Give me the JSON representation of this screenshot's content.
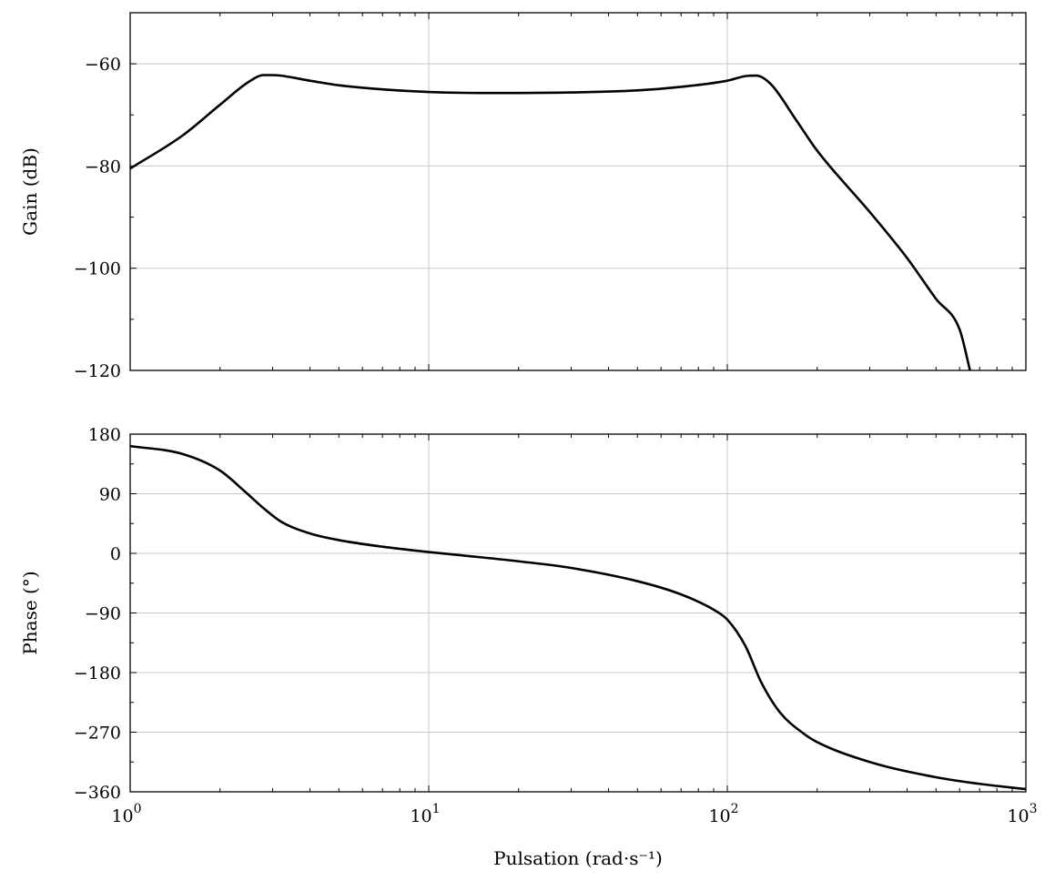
{
  "chart_data": [
    {
      "type": "line",
      "panel": "gain",
      "ylabel": "Gain (dB)",
      "xlabel": "",
      "xscale": "log",
      "xlim": [
        1,
        1000
      ],
      "ylim": [
        -120,
        -50
      ],
      "yticks": [
        -60,
        -80,
        -100,
        -120
      ],
      "ytick_labels": [
        "−60",
        "−80",
        "−100",
        "−120"
      ],
      "grid": true,
      "series": [
        {
          "x": [
            1,
            1.5,
            2,
            2.5,
            2.8,
            3,
            4,
            5,
            7,
            10,
            15,
            20,
            30,
            50,
            70,
            100,
            115,
            125,
            140,
            170,
            200,
            300,
            400,
            500,
            600,
            650
          ],
          "y": [
            -80.5,
            -74,
            -68,
            -63.5,
            -62.2,
            -62.2,
            -63.3,
            -64.2,
            -65,
            -65.5,
            -65.7,
            -65.7,
            -65.6,
            -65.2,
            -64.5,
            -63.3,
            -62.4,
            -62.3,
            -64,
            -71,
            -77,
            -89,
            -98,
            -106,
            -112,
            -120
          ]
        }
      ]
    },
    {
      "type": "line",
      "panel": "phase",
      "ylabel": "Phase (°)",
      "xlabel": "Pulsation (rad·s⁻¹)",
      "xscale": "log",
      "xlim": [
        1,
        1000
      ],
      "ylim": [
        -360,
        180
      ],
      "yticks": [
        180,
        90,
        0,
        -90,
        -180,
        -270,
        -360
      ],
      "ytick_labels": [
        "180",
        "90",
        "0",
        "−90",
        "−180",
        "−270",
        "−360"
      ],
      "xtick_labels": [
        "10",
        "10",
        "10",
        "10"
      ],
      "xtick_exponents": [
        "0",
        "1",
        "2",
        "3"
      ],
      "grid": true,
      "series": [
        {
          "x": [
            1,
            1.5,
            2,
            2.4,
            2.8,
            3.2,
            4,
            5,
            7,
            10,
            15,
            20,
            30,
            50,
            70,
            90,
            100,
            115,
            130,
            150,
            180,
            200,
            300,
            500,
            700,
            1000
          ],
          "y": [
            162,
            150,
            125,
            95,
            68,
            48,
            30,
            20,
            10,
            2,
            -6,
            -12,
            -22,
            -42,
            -62,
            -85,
            -100,
            -140,
            -195,
            -240,
            -272,
            -285,
            -315,
            -338,
            -348,
            -356
          ]
        }
      ]
    }
  ]
}
